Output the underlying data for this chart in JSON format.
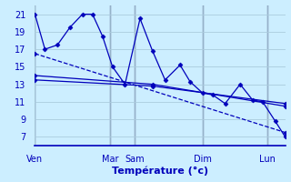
{
  "title": "Température (°c)",
  "background_color": "#cceeff",
  "grid_color": "#aaccdd",
  "line_color": "#0000bb",
  "text_color": "#0000bb",
  "ylim": [
    6,
    22
  ],
  "yticks": [
    7,
    9,
    11,
    13,
    15,
    17,
    19,
    21
  ],
  "xlim": [
    0,
    1.0
  ],
  "series": [
    {
      "x": [
        0.0,
        0.04,
        0.09,
        0.14,
        0.19,
        0.23,
        0.27,
        0.31,
        0.36,
        0.42,
        0.47,
        0.52,
        0.58,
        0.62,
        0.67,
        0.71,
        0.76,
        0.82,
        0.87,
        0.91,
        0.96,
        1.0
      ],
      "y": [
        21.0,
        17.0,
        17.5,
        19.5,
        21.0,
        21.0,
        18.5,
        15.0,
        13.0,
        20.5,
        16.8,
        13.5,
        15.2,
        13.3,
        12.0,
        11.8,
        10.8,
        13.0,
        11.2,
        11.0,
        8.8,
        7.0
      ]
    },
    {
      "x": [
        0.0,
        1.0
      ],
      "y": [
        16.5,
        7.5
      ],
      "dashed": true
    },
    {
      "x": [
        0.0,
        0.47,
        1.0
      ],
      "y": [
        14.0,
        13.0,
        10.5
      ]
    },
    {
      "x": [
        0.0,
        0.47,
        1.0
      ],
      "y": [
        13.5,
        12.8,
        10.8
      ]
    }
  ],
  "x_label_map": {
    "0.00": "Ven",
    "0.30": "Mar",
    "0.40": "Sam",
    "0.67": "Dim",
    "0.93": "Lun"
  },
  "vline_positions": [
    0.0,
    0.3,
    0.4,
    0.67,
    0.93
  ],
  "marker": "D",
  "markersize": 2.5,
  "linewidth": 0.9
}
